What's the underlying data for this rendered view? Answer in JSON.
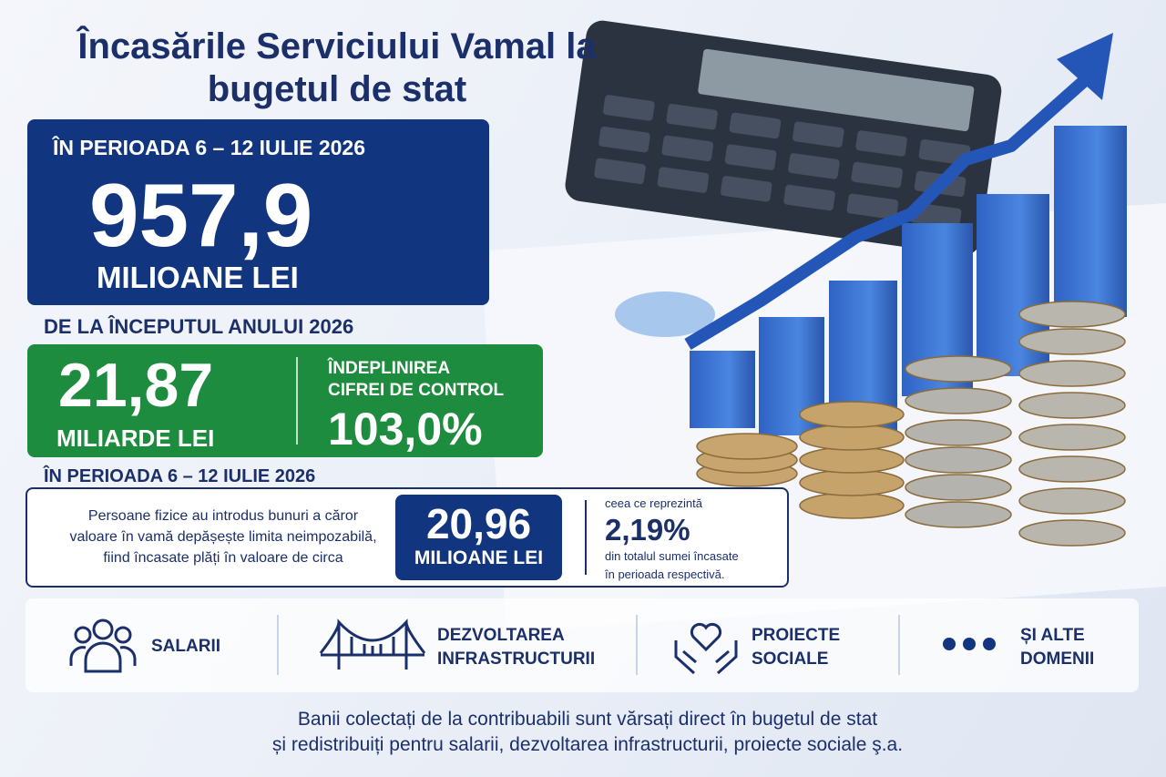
{
  "title": {
    "lines": [
      "Încasările Serviciului Vamal la",
      "bugetul de stat"
    ]
  },
  "weekly": {
    "period": "ÎN PERIOADA 6 – 12 IULIE 2026",
    "value": "957,9",
    "unit": "MILIOANE LEI"
  },
  "year_to_date": {
    "heading": "DE LA ÎNCEPUTUL ANULUI 2026",
    "value": "21,87",
    "unit": "MILIARDE LEI",
    "target_label": [
      "ÎNDEPLINIREA",
      "CIFREI DE CONTROL"
    ],
    "target_value": "103,0%"
  },
  "individuals": {
    "heading": "ÎN PERIOADA 6 – 12 IULIE 2026",
    "text": [
      "Persoane fizice au introdus bunuri a căror",
      "valoare în vamă depășește limita neimpozabilă,",
      "fiind încasate plăți în valoare de circa"
    ],
    "value": "20,96",
    "unit": "MILIOANE LEI",
    "share_intro": "ceea ce reprezintă",
    "share": "2,19%",
    "share_text": [
      "din totalul sumei încasate",
      "în perioada respectivă."
    ]
  },
  "domains": [
    [
      "SALARII"
    ],
    [
      "DEZVOLTAREA",
      "INFRASTRUCTURII"
    ],
    [
      "PROIECTE",
      "SOCIALE"
    ],
    [
      "ȘI ALTE",
      "DOMENII"
    ]
  ],
  "footer": [
    "Banii colectați de la contribuabili sunt vărsați direct în bugetul de stat",
    "și redistribuiți pentru salarii, dezvoltarea infrastructurii, proiecte sociale ş.a."
  ]
}
